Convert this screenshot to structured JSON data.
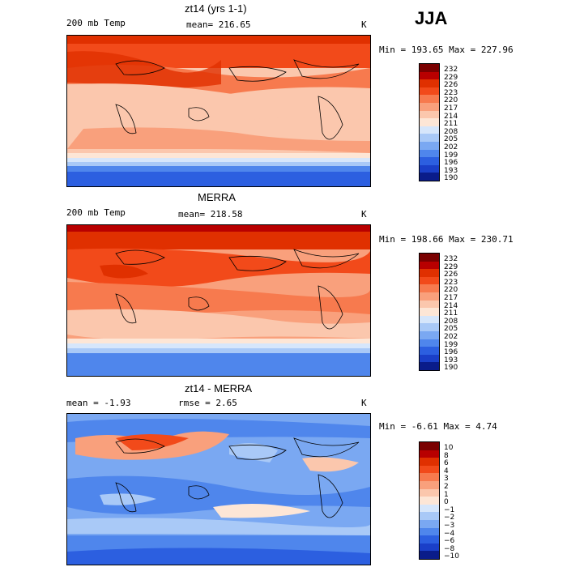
{
  "season": "JJA",
  "panels": [
    {
      "title": "zt14 (yrs 1-1)",
      "left_label": "200 mb Temp",
      "center_label": "mean= 216.65",
      "unit": "K",
      "minmax": "Min = 193.65 Max = 227.96",
      "legend": [
        "232",
        "229",
        "226",
        "223",
        "220",
        "217",
        "214",
        "211",
        "208",
        "205",
        "202",
        "199",
        "196",
        "193",
        "190"
      ],
      "colors": [
        "#7a0000",
        "#b80000",
        "#e03000",
        "#f24a1a",
        "#f77a4e",
        "#f9a07c",
        "#fbc7ad",
        "#fde6d6",
        "#d6e6fb",
        "#a9c9f7",
        "#7aa8f2",
        "#4f86ec",
        "#2c5fe0",
        "#1a3fc8",
        "#0a1c8a"
      ]
    },
    {
      "title": "MERRA",
      "left_label": "200 mb Temp",
      "center_label": "mean= 218.58",
      "unit": "K",
      "minmax": "Min = 198.66 Max = 230.71",
      "legend": [
        "232",
        "229",
        "226",
        "223",
        "220",
        "217",
        "214",
        "211",
        "208",
        "205",
        "202",
        "199",
        "196",
        "193",
        "190"
      ],
      "colors": [
        "#7a0000",
        "#b80000",
        "#e03000",
        "#f24a1a",
        "#f77a4e",
        "#f9a07c",
        "#fbc7ad",
        "#fde6d6",
        "#d6e6fb",
        "#a9c9f7",
        "#7aa8f2",
        "#4f86ec",
        "#2c5fe0",
        "#1a3fc8",
        "#0a1c8a"
      ]
    },
    {
      "title": "zt14 - MERRA",
      "left_label": "mean = -1.93",
      "center_label": "rmse = 2.65",
      "unit": "K",
      "minmax": "Min = -6.61 Max = 4.74",
      "legend": [
        "10",
        "8",
        "6",
        "4",
        "3",
        "2",
        "1",
        "0",
        "−1",
        "−2",
        "−3",
        "−4",
        "−6",
        "−8",
        "−10"
      ],
      "colors": [
        "#7a0000",
        "#b80000",
        "#e03000",
        "#f24a1a",
        "#f77a4e",
        "#f9a07c",
        "#fbc7ad",
        "#fde6d6",
        "#d6e6fb",
        "#a9c9f7",
        "#7aa8f2",
        "#4f86ec",
        "#2c5fe0",
        "#1a3fc8",
        "#0a1c8a"
      ]
    }
  ]
}
